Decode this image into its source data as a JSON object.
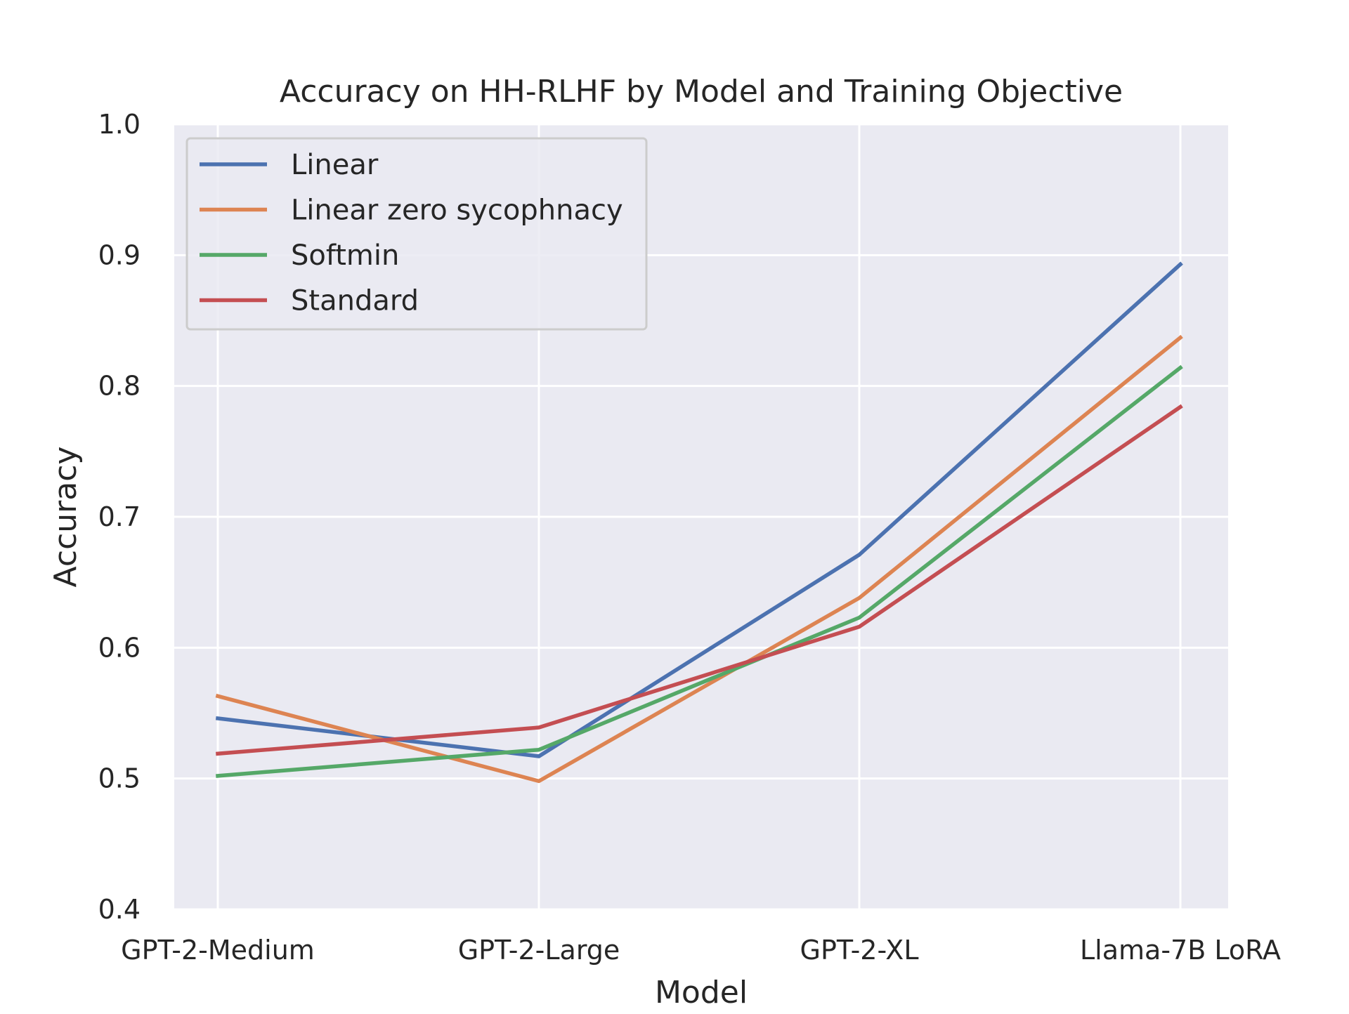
{
  "chart_data": {
    "type": "line",
    "title": "Accuracy on HH-RLHF by Model and Training Objective",
    "xlabel": "Model",
    "ylabel": "Accuracy",
    "categories": [
      "GPT-2-Medium",
      "GPT-2-Large",
      "GPT-2-XL",
      "Llama-7B LoRA"
    ],
    "ylim": [
      0.4,
      1.0
    ],
    "yticks": [
      "0.4",
      "0.5",
      "0.6",
      "0.7",
      "0.8",
      "0.9",
      "1.0"
    ],
    "grid": true,
    "legend_position": "upper-left",
    "series": [
      {
        "name": "Linear",
        "color": "#4c72b0",
        "values": [
          0.546,
          0.517,
          0.671,
          0.893
        ]
      },
      {
        "name": "Linear zero sycophnacy",
        "color": "#dd8452",
        "values": [
          0.563,
          0.498,
          0.638,
          0.837
        ]
      },
      {
        "name": "Softmin",
        "color": "#55a868",
        "values": [
          0.502,
          0.522,
          0.623,
          0.814
        ]
      },
      {
        "name": "Standard",
        "color": "#c44e52",
        "values": [
          0.519,
          0.539,
          0.616,
          0.784
        ]
      }
    ]
  },
  "colors": {
    "plot_background": "#eaeaf2",
    "grid": "#ffffff",
    "text": "#262626"
  }
}
